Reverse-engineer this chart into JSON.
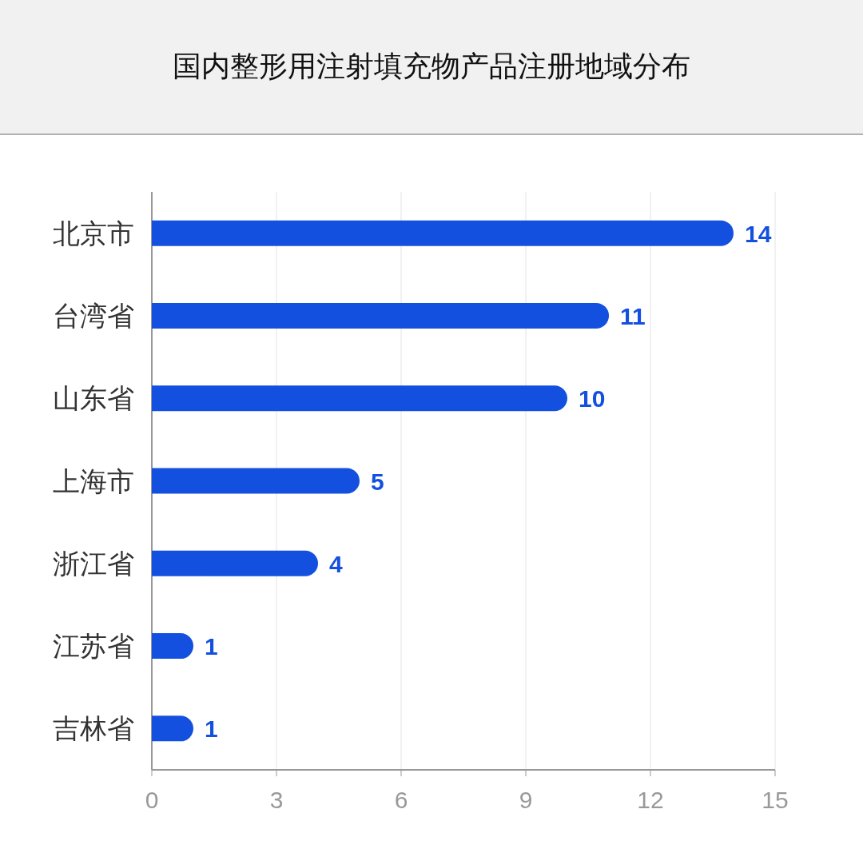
{
  "chart_data": {
    "type": "bar",
    "orientation": "horizontal",
    "title": "国内整形用注射填充物产品注册地域分布",
    "categories": [
      "北京市",
      "台湾省",
      "山东省",
      "上海市",
      "浙江省",
      "江苏省",
      "吉林省"
    ],
    "values": [
      14,
      11,
      10,
      5,
      4,
      1,
      1
    ],
    "color": "#1450e0",
    "xlim": [
      0,
      15
    ],
    "xticks": [
      0,
      3,
      6,
      9,
      12,
      15
    ],
    "grid": "x",
    "data_labels": true
  }
}
